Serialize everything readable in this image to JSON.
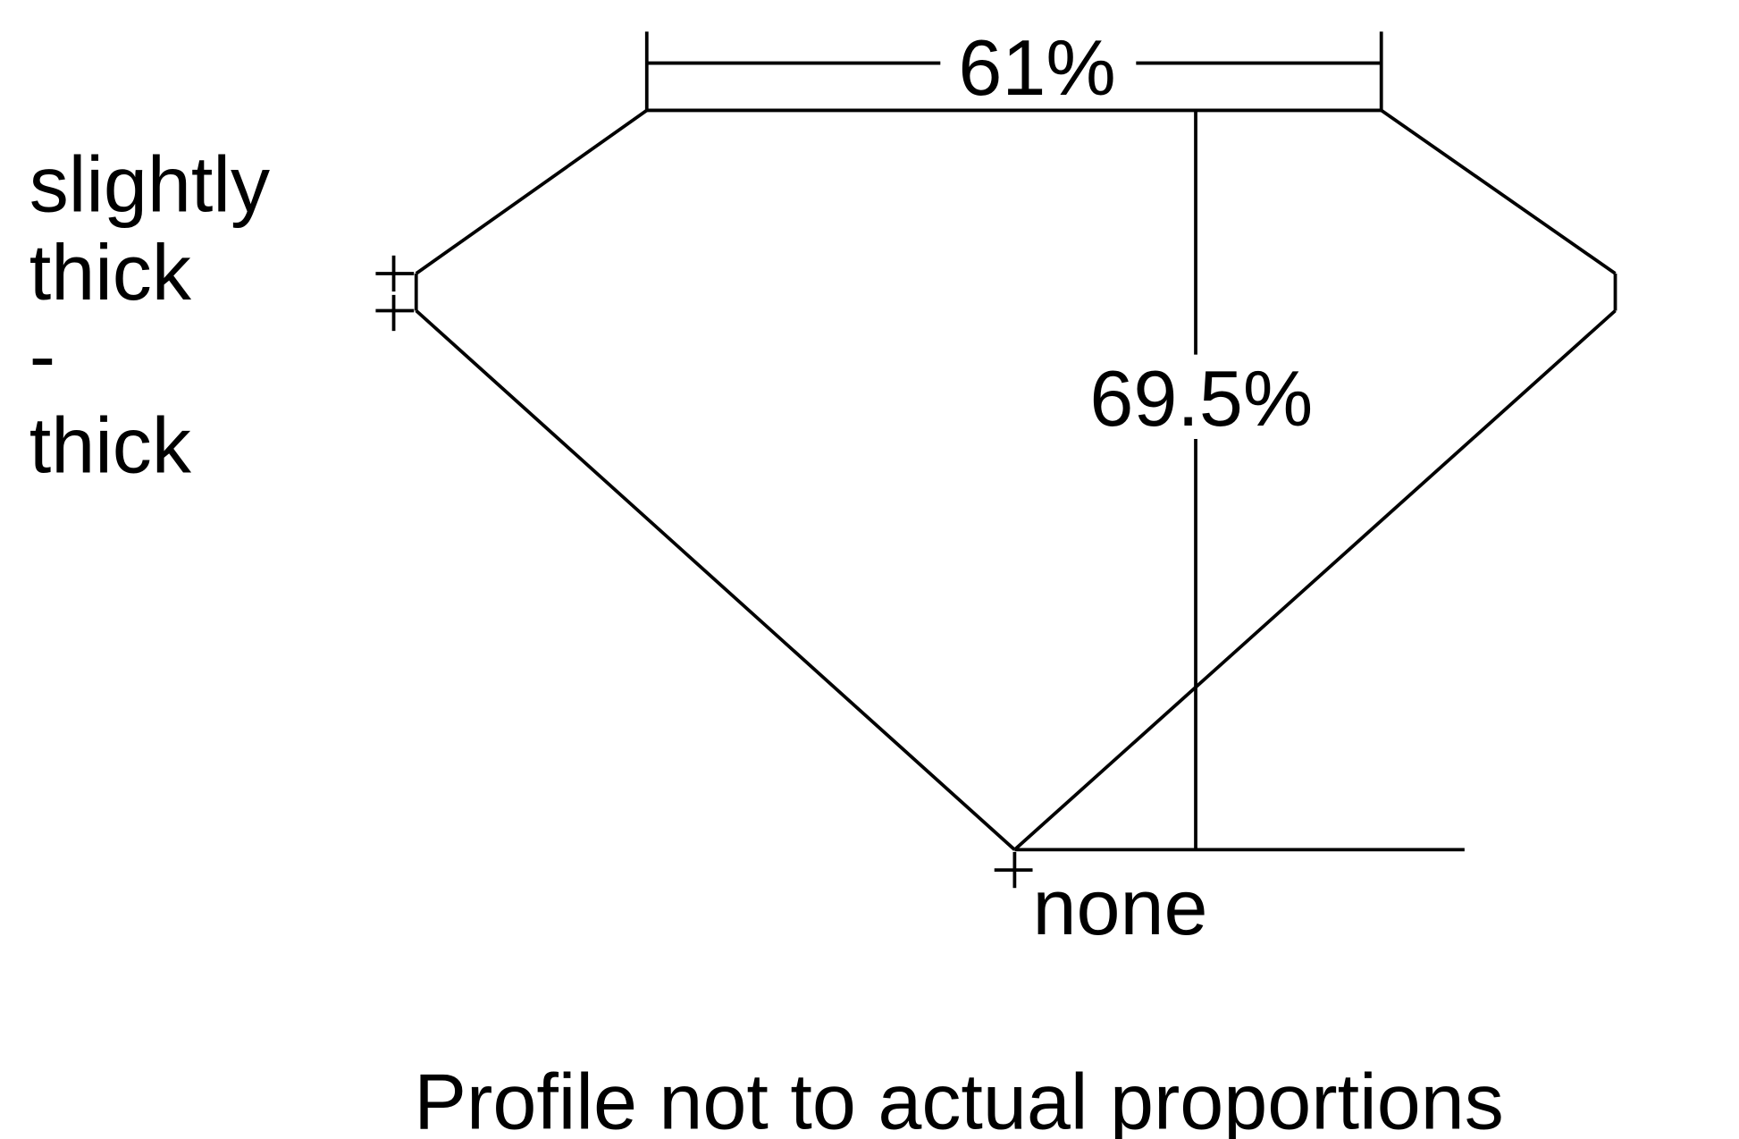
{
  "diagram": {
    "table_percentage": "61%",
    "total_depth_percentage": "69.5%",
    "girdle_label": [
      "slightly",
      "thick",
      "-",
      "thick"
    ],
    "culet_label": "none",
    "caption": "Profile not to actual proportions",
    "line_color": "#000000",
    "background_color": "#ffffff"
  }
}
